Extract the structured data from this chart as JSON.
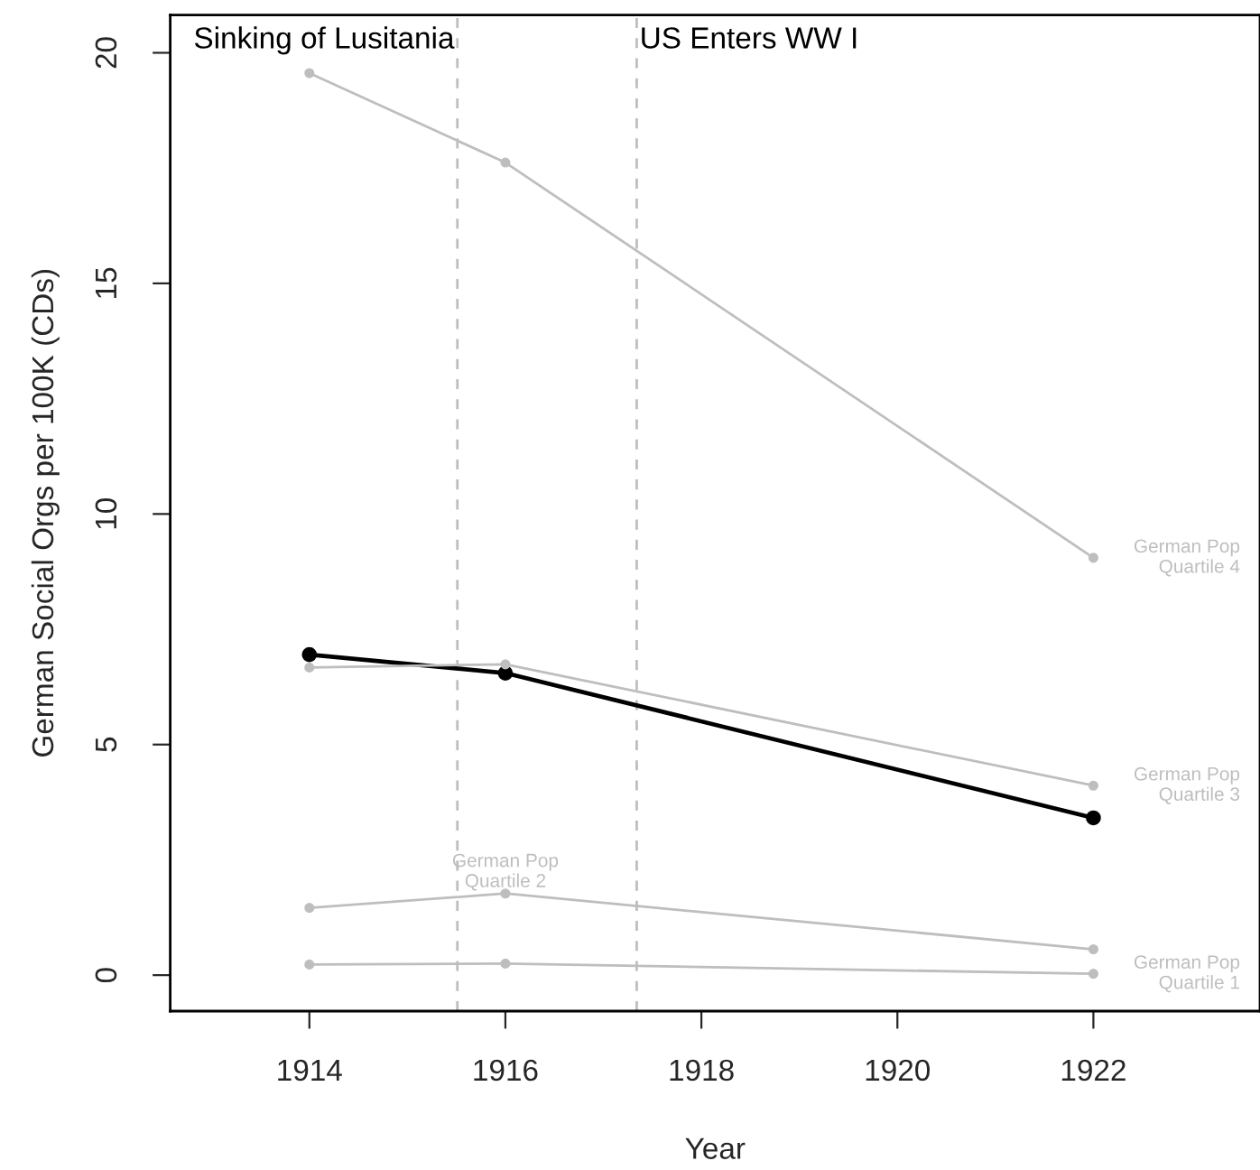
{
  "chart_data": {
    "type": "line",
    "xlabel": "Year",
    "ylabel": "German Social Orgs per 100K (CDs)",
    "x": [
      1914,
      1916,
      1922
    ],
    "series": [
      {
        "name": "German Pop\nQuartile 4",
        "color": "#bebebe",
        "values": [
          19.56,
          17.62,
          9.05
        ]
      },
      {
        "name": "German Pop\nQuartile 3",
        "color": "#bebebe",
        "values": [
          6.67,
          6.74,
          4.11
        ]
      },
      {
        "name": "German Pop\nQuartile 2",
        "color": "#bebebe",
        "values": [
          1.46,
          1.77,
          0.56
        ]
      },
      {
        "name": "German Pop\nQuartile 1",
        "color": "#bebebe",
        "values": [
          0.23,
          0.25,
          0.03
        ]
      },
      {
        "color": "#000000",
        "values": [
          6.95,
          6.55,
          3.41
        ]
      }
    ],
    "ref_lines": [
      {
        "axis": "x",
        "value": 1915.51,
        "label": "Sinking of Lusitania",
        "color": "#bebebe",
        "line_style": "dashed"
      },
      {
        "axis": "x",
        "value": 1917.34,
        "label": "US Enters WW I",
        "color": "#bebebe",
        "line_style": "dashed"
      }
    ],
    "xlim": [
      1912.58,
      1923.7
    ],
    "ylim": [
      -0.78,
      20.82
    ],
    "xticks": [
      1914,
      1916,
      1918,
      1920,
      1922
    ],
    "yticks": [
      0,
      5,
      10,
      15,
      20
    ],
    "marker": "circle",
    "grid": false,
    "legend": false
  }
}
